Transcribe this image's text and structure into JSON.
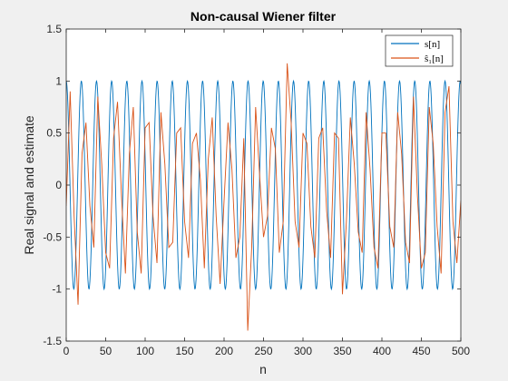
{
  "chart_data": {
    "type": "line",
    "title": "Non-causal Wiener filter",
    "xlabel": "n",
    "ylabel": "Real signal and estimate",
    "xlim": [
      0,
      500
    ],
    "ylim": [
      -1.5,
      1.5
    ],
    "xticks": [
      "0",
      "50",
      "100",
      "150",
      "200",
      "250",
      "300",
      "350",
      "400",
      "450",
      "500"
    ],
    "yticks": [
      "-1.5",
      "-1",
      "-0.5",
      "0",
      "0.5",
      "1",
      "1.5"
    ],
    "grid": false,
    "legend_position": "top-right",
    "series": [
      {
        "name": "s[n]",
        "color": "#0072BD",
        "description_values": {
          "form": "sinusoid",
          "amplitude": 1,
          "period_samples": 19.2,
          "phase_rad": 1.5708
        }
      },
      {
        "name": "ŝ₁[n]",
        "color": "#D95319",
        "x": [
          0,
          5,
          10,
          15,
          20,
          25,
          30,
          35,
          40,
          45,
          50,
          55,
          60,
          65,
          70,
          75,
          80,
          85,
          90,
          95,
          100,
          105,
          110,
          115,
          120,
          125,
          130,
          135,
          140,
          145,
          150,
          155,
          160,
          165,
          170,
          175,
          180,
          185,
          190,
          195,
          200,
          205,
          210,
          215,
          220,
          225,
          230,
          235,
          240,
          245,
          250,
          255,
          260,
          265,
          270,
          275,
          280,
          285,
          290,
          295,
          300,
          305,
          310,
          315,
          320,
          325,
          330,
          335,
          340,
          345,
          350,
          355,
          360,
          365,
          370,
          375,
          380,
          385,
          390,
          395,
          400,
          405,
          410,
          415,
          420,
          425,
          430,
          435,
          440,
          445,
          450,
          455,
          460,
          465,
          470,
          475,
          480,
          485,
          490,
          495,
          500
        ],
        "y": [
          -0.2,
          0.9,
          -0.3,
          -1.15,
          0.3,
          0.6,
          -0.2,
          -0.6,
          0.85,
          0.2,
          -0.65,
          -0.8,
          0.45,
          0.8,
          -0.1,
          -0.85,
          0.3,
          0.75,
          -0.45,
          -0.85,
          0.55,
          0.6,
          -0.3,
          -0.75,
          0.7,
          0.2,
          -0.6,
          -0.55,
          0.5,
          0.55,
          -0.35,
          -0.7,
          0.4,
          0.5,
          0.05,
          -0.8,
          0.25,
          0.65,
          -0.3,
          -0.95,
          -0.15,
          0.6,
          0.15,
          -0.7,
          -0.5,
          0.45,
          -1.4,
          -0.6,
          0.75,
          0.1,
          -0.5,
          -0.3,
          0.55,
          0.35,
          -0.65,
          -0.35,
          1.17,
          0.6,
          -0.35,
          -0.6,
          0.5,
          0.4,
          -0.4,
          -0.7,
          0.45,
          0.55,
          -0.25,
          -0.7,
          0.5,
          0.45,
          -1.05,
          -0.35,
          0.65,
          0.2,
          -0.45,
          -0.65,
          0.7,
          0.15,
          -0.6,
          -0.8,
          0.5,
          0.5,
          -0.4,
          -0.6,
          0.7,
          0.3,
          -0.55,
          -0.75,
          0.85,
          -0.1,
          -0.8,
          -0.65,
          0.75,
          0.4,
          -0.4,
          -0.85,
          0.7,
          0.95,
          -0.35,
          -0.75,
          -0.15
        ]
      }
    ]
  }
}
